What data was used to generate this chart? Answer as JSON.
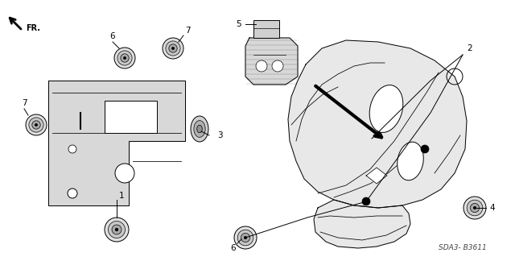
{
  "bg": "#ffffff",
  "fg": "#000000",
  "watermark": "SDA3- B3611",
  "fig_w": 6.4,
  "fig_h": 3.19,
  "dpi": 100
}
